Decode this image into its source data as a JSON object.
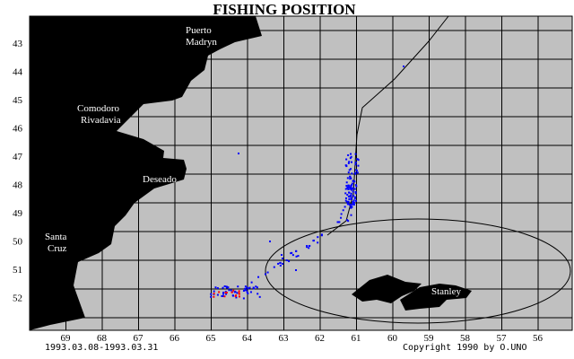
{
  "title": "FISHING POSITION",
  "latitudes": [
    "43",
    "44",
    "45",
    "46",
    "47",
    "48",
    "49",
    "50",
    "51",
    "52"
  ],
  "longitudes": [
    "69",
    "68",
    "67",
    "66",
    "65",
    "64",
    "63",
    "62",
    "61",
    "60",
    "59",
    "58",
    "57",
    "56"
  ],
  "places": {
    "puerto_madryn": [
      "Puerto",
      "Madryn"
    ],
    "comodoro_rivadavia": [
      "Comodoro",
      "Rivadavia"
    ],
    "deseado": "Deseado",
    "santa_cruz": [
      "Santa",
      "Cruz"
    ],
    "stanley": "Stanley"
  },
  "date_range": "1993.03.08-1993.03.31",
  "copyright": "Copyright 1990 by O.UNO",
  "colors": {
    "background": "#ffffff",
    "plot_background": "#c0c0c0",
    "land": "#000000",
    "grid": "#000000",
    "position_main": "#0000ff",
    "position_alt": "#ff0000"
  }
}
